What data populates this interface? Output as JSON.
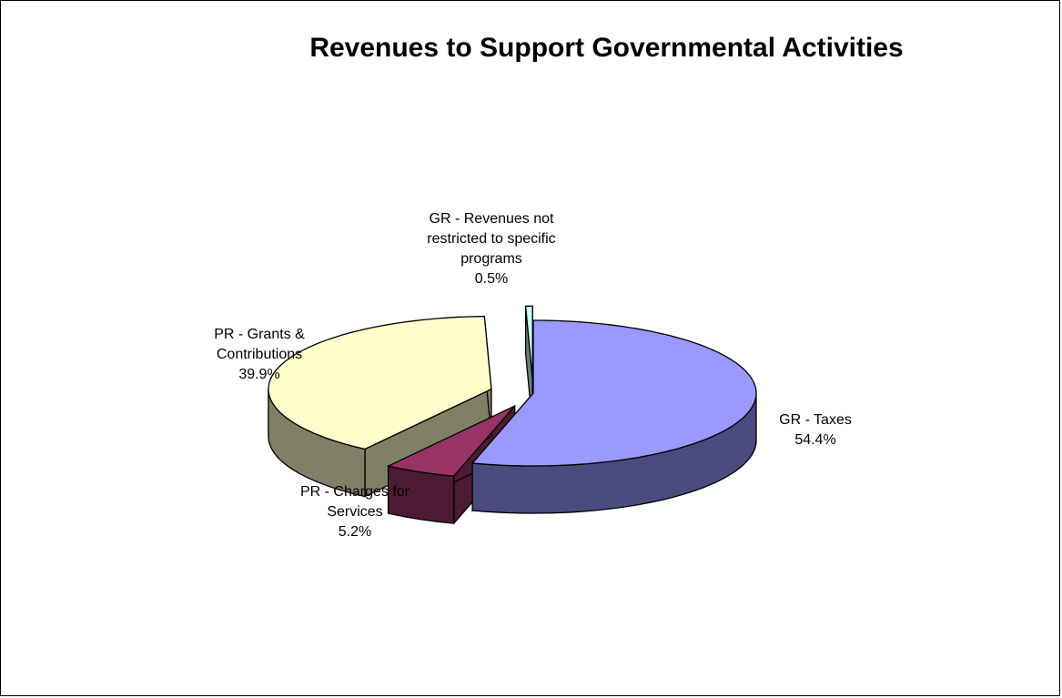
{
  "chart_data": {
    "type": "pie",
    "style": "3d-exploded",
    "title": "Revenues to Support Governmental Activities",
    "slices": [
      {
        "name": "GR - Taxes",
        "label_lines": [
          "GR - Taxes",
          "54.4%"
        ],
        "value": 54.4,
        "top_color": "#9999ff",
        "side_color": "#4b4b80"
      },
      {
        "name": "PR - Charges for Services",
        "label_lines": [
          "PR - Charges for",
          "Services",
          "5.2%"
        ],
        "value": 5.2,
        "top_color": "#993366",
        "side_color": "#4d1a33"
      },
      {
        "name": "PR - Grants & Contributions",
        "label_lines": [
          "PR - Grants &",
          "Contributions",
          "39.9%"
        ],
        "value": 39.9,
        "top_color": "#ffffcc",
        "side_color": "#808066"
      },
      {
        "name": "GR - Revenues not restricted to specific programs",
        "label_lines": [
          "GR - Revenues not",
          "restricted to specific",
          "programs",
          "0.5%"
        ],
        "value": 0.5,
        "top_color": "#ccffff",
        "side_color": "#668080"
      }
    ]
  }
}
